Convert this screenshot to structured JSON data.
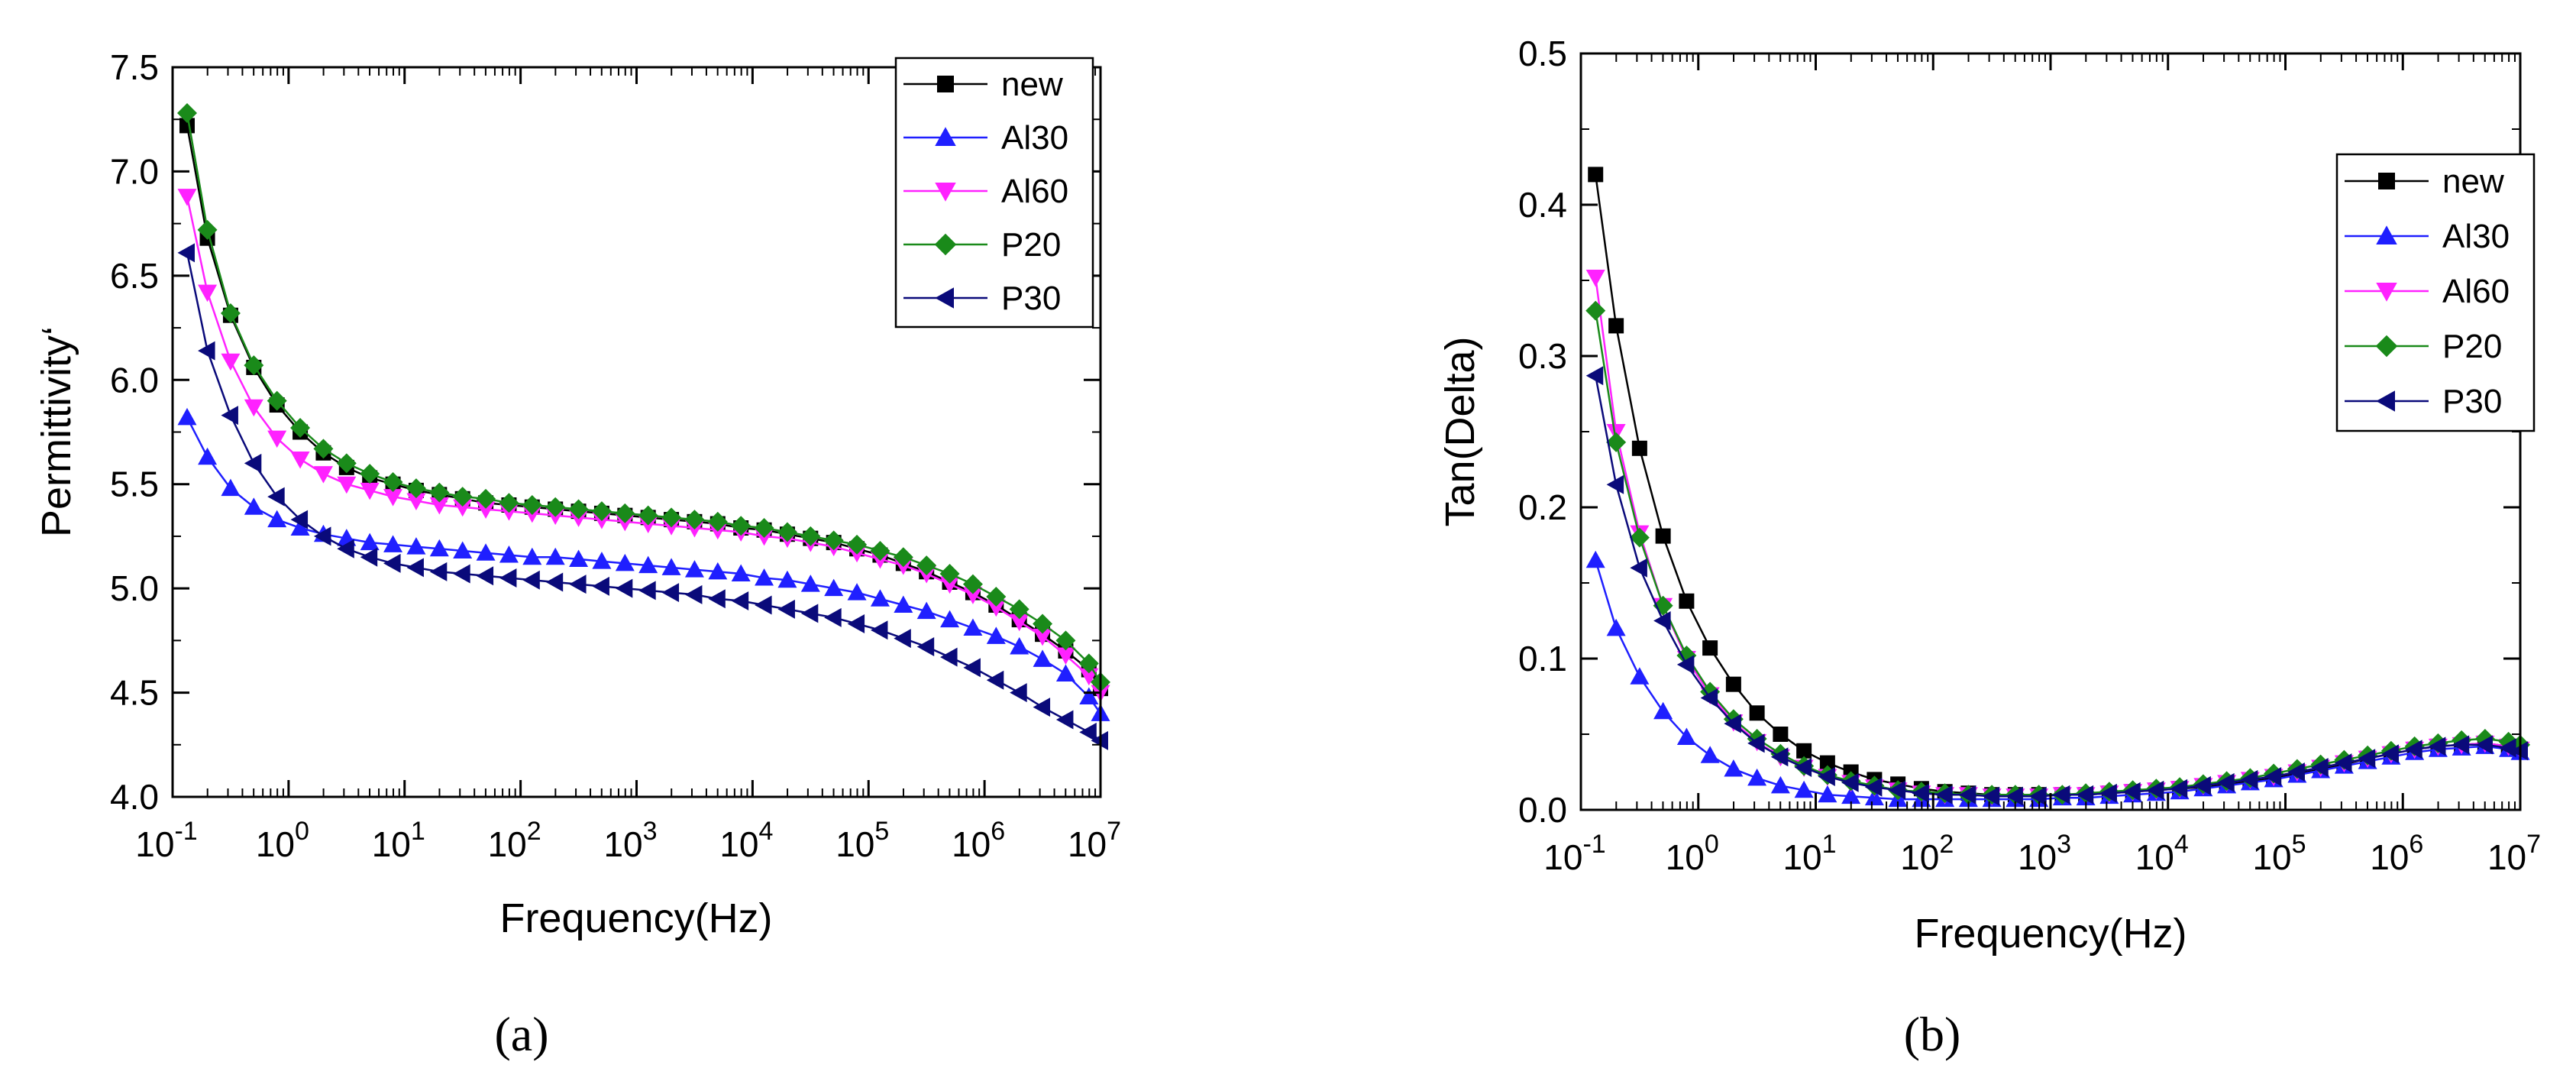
{
  "chart_data": [
    {
      "type": "line",
      "panel_label": "(a)",
      "title": "",
      "xlabel": "Frequency(Hz)",
      "ylabel": "Permittivity‘",
      "xscale": "log",
      "xlim_exp": [
        -1,
        7
      ],
      "ylim": [
        4.0,
        7.5
      ],
      "x_ticks": [
        {
          "base": "10",
          "exp": "-1"
        },
        {
          "base": "10",
          "exp": "0"
        },
        {
          "base": "10",
          "exp": "1"
        },
        {
          "base": "10",
          "exp": "2"
        },
        {
          "base": "10",
          "exp": "3"
        },
        {
          "base": "10",
          "exp": "4"
        },
        {
          "base": "10",
          "exp": "5"
        },
        {
          "base": "10",
          "exp": "6"
        },
        {
          "base": "10",
          "exp": "7"
        }
      ],
      "y_ticks": [
        "4.0",
        "4.5",
        "5.0",
        "5.5",
        "6.0",
        "6.5",
        "7.0",
        "7.5"
      ],
      "legend_position": "top-right",
      "x_exp": [
        -0.875,
        -0.7,
        -0.5,
        -0.3,
        -0.1,
        0.1,
        0.3,
        0.5,
        0.7,
        0.9,
        1.1,
        1.3,
        1.5,
        1.7,
        1.9,
        2.1,
        2.3,
        2.5,
        2.7,
        2.9,
        3.1,
        3.3,
        3.5,
        3.7,
        3.9,
        4.1,
        4.3,
        4.5,
        4.7,
        4.9,
        5.1,
        5.3,
        5.5,
        5.7,
        5.9,
        6.1,
        6.3,
        6.5,
        6.7,
        6.9,
        7.0
      ],
      "series": [
        {
          "name": "new",
          "color": "#000000",
          "marker": "square",
          "values": [
            7.22,
            6.68,
            6.31,
            6.06,
            5.88,
            5.75,
            5.65,
            5.58,
            5.53,
            5.5,
            5.47,
            5.45,
            5.43,
            5.41,
            5.4,
            5.39,
            5.38,
            5.37,
            5.36,
            5.35,
            5.34,
            5.33,
            5.32,
            5.31,
            5.29,
            5.28,
            5.26,
            5.24,
            5.22,
            5.19,
            5.16,
            5.12,
            5.08,
            5.03,
            4.98,
            4.92,
            4.85,
            4.78,
            4.7,
            4.61,
            4.52
          ]
        },
        {
          "name": "Al30",
          "color": "#1f1fff",
          "marker": "triangle-up",
          "values": [
            5.82,
            5.63,
            5.48,
            5.39,
            5.33,
            5.29,
            5.26,
            5.24,
            5.22,
            5.21,
            5.2,
            5.19,
            5.18,
            5.17,
            5.16,
            5.15,
            5.15,
            5.14,
            5.13,
            5.12,
            5.11,
            5.1,
            5.09,
            5.08,
            5.07,
            5.05,
            5.04,
            5.02,
            5.0,
            4.98,
            4.95,
            4.92,
            4.89,
            4.85,
            4.81,
            4.77,
            4.72,
            4.66,
            4.59,
            4.48,
            4.4
          ]
        },
        {
          "name": "Al60",
          "color": "#ff22ff",
          "marker": "triangle-down",
          "values": [
            6.88,
            6.42,
            6.09,
            5.87,
            5.72,
            5.62,
            5.55,
            5.5,
            5.47,
            5.44,
            5.42,
            5.4,
            5.39,
            5.38,
            5.37,
            5.36,
            5.35,
            5.34,
            5.33,
            5.32,
            5.31,
            5.3,
            5.29,
            5.28,
            5.27,
            5.25,
            5.24,
            5.22,
            5.2,
            5.17,
            5.14,
            5.11,
            5.07,
            5.02,
            4.97,
            4.91,
            4.84,
            4.77,
            4.68,
            4.58,
            4.5
          ]
        },
        {
          "name": "P20",
          "color": "#1a8a1a",
          "marker": "diamond",
          "values": [
            7.28,
            6.72,
            6.32,
            6.07,
            5.9,
            5.77,
            5.67,
            5.6,
            5.55,
            5.51,
            5.48,
            5.46,
            5.44,
            5.43,
            5.41,
            5.4,
            5.39,
            5.38,
            5.37,
            5.36,
            5.35,
            5.34,
            5.33,
            5.32,
            5.3,
            5.29,
            5.27,
            5.25,
            5.23,
            5.21,
            5.18,
            5.15,
            5.11,
            5.07,
            5.02,
            4.96,
            4.9,
            4.83,
            4.75,
            4.64,
            4.55
          ]
        },
        {
          "name": "P30",
          "color": "#0a0a7a",
          "marker": "triangle-left",
          "values": [
            6.61,
            6.14,
            5.83,
            5.6,
            5.44,
            5.33,
            5.25,
            5.19,
            5.15,
            5.12,
            5.1,
            5.08,
            5.07,
            5.06,
            5.05,
            5.04,
            5.03,
            5.02,
            5.01,
            5.0,
            4.99,
            4.98,
            4.97,
            4.95,
            4.94,
            4.92,
            4.9,
            4.88,
            4.86,
            4.83,
            4.8,
            4.76,
            4.72,
            4.67,
            4.62,
            4.56,
            4.5,
            4.43,
            4.37,
            4.31,
            4.27
          ]
        }
      ]
    },
    {
      "type": "line",
      "panel_label": "(b)",
      "title": "",
      "xlabel": "Frequency(Hz)",
      "ylabel": "Tan(Delta)",
      "xscale": "log",
      "xlim_exp": [
        -1,
        7
      ],
      "ylim": [
        0.0,
        0.5
      ],
      "x_ticks": [
        {
          "base": "10",
          "exp": "-1"
        },
        {
          "base": "10",
          "exp": "0"
        },
        {
          "base": "10",
          "exp": "1"
        },
        {
          "base": "10",
          "exp": "2"
        },
        {
          "base": "10",
          "exp": "3"
        },
        {
          "base": "10",
          "exp": "4"
        },
        {
          "base": "10",
          "exp": "5"
        },
        {
          "base": "10",
          "exp": "6"
        },
        {
          "base": "10",
          "exp": "7"
        }
      ],
      "y_ticks": [
        "0.0",
        "0.1",
        "0.2",
        "0.3",
        "0.4",
        "0.5"
      ],
      "legend_position": "upper-right",
      "x_exp": [
        -0.875,
        -0.7,
        -0.5,
        -0.3,
        -0.1,
        0.1,
        0.3,
        0.5,
        0.7,
        0.9,
        1.1,
        1.3,
        1.5,
        1.7,
        1.9,
        2.1,
        2.3,
        2.5,
        2.7,
        2.9,
        3.1,
        3.3,
        3.5,
        3.7,
        3.9,
        4.1,
        4.3,
        4.5,
        4.7,
        4.9,
        5.1,
        5.3,
        5.5,
        5.7,
        5.9,
        6.1,
        6.3,
        6.5,
        6.7,
        6.9,
        7.0
      ],
      "series": [
        {
          "name": "new",
          "color": "#000000",
          "marker": "square",
          "values": [
            0.42,
            0.32,
            0.239,
            0.181,
            0.138,
            0.107,
            0.083,
            0.064,
            0.05,
            0.039,
            0.031,
            0.025,
            0.02,
            0.017,
            0.014,
            0.012,
            0.011,
            0.01,
            0.01,
            0.01,
            0.01,
            0.01,
            0.011,
            0.012,
            0.013,
            0.014,
            0.015,
            0.017,
            0.019,
            0.021,
            0.024,
            0.027,
            0.03,
            0.034,
            0.037,
            0.04,
            0.042,
            0.043,
            0.044,
            0.042,
            0.04
          ]
        },
        {
          "name": "Al30",
          "color": "#1f1fff",
          "marker": "triangle-up",
          "values": [
            0.165,
            0.12,
            0.088,
            0.065,
            0.048,
            0.036,
            0.027,
            0.021,
            0.016,
            0.013,
            0.01,
            0.009,
            0.008,
            0.007,
            0.007,
            0.007,
            0.007,
            0.007,
            0.007,
            0.007,
            0.008,
            0.008,
            0.009,
            0.01,
            0.011,
            0.012,
            0.014,
            0.016,
            0.018,
            0.02,
            0.023,
            0.026,
            0.029,
            0.032,
            0.035,
            0.038,
            0.04,
            0.041,
            0.042,
            0.04,
            0.038
          ]
        },
        {
          "name": "Al60",
          "color": "#ff22ff",
          "marker": "triangle-down",
          "values": [
            0.352,
            0.25,
            0.183,
            0.135,
            0.1,
            0.076,
            0.058,
            0.045,
            0.035,
            0.028,
            0.022,
            0.018,
            0.015,
            0.013,
            0.011,
            0.01,
            0.01,
            0.009,
            0.009,
            0.009,
            0.01,
            0.01,
            0.011,
            0.012,
            0.013,
            0.014,
            0.016,
            0.018,
            0.02,
            0.022,
            0.025,
            0.028,
            0.031,
            0.034,
            0.037,
            0.04,
            0.042,
            0.043,
            0.044,
            0.042,
            0.04
          ]
        },
        {
          "name": "P20",
          "color": "#1a8a1a",
          "marker": "diamond",
          "values": [
            0.33,
            0.243,
            0.18,
            0.135,
            0.102,
            0.078,
            0.06,
            0.047,
            0.037,
            0.029,
            0.023,
            0.019,
            0.016,
            0.013,
            0.012,
            0.011,
            0.01,
            0.01,
            0.01,
            0.01,
            0.01,
            0.011,
            0.012,
            0.013,
            0.014,
            0.015,
            0.017,
            0.019,
            0.021,
            0.024,
            0.027,
            0.03,
            0.033,
            0.036,
            0.039,
            0.042,
            0.044,
            0.046,
            0.047,
            0.045,
            0.043
          ]
        },
        {
          "name": "P30",
          "color": "#0a0a7a",
          "marker": "triangle-left",
          "values": [
            0.287,
            0.215,
            0.16,
            0.125,
            0.096,
            0.074,
            0.057,
            0.044,
            0.035,
            0.028,
            0.022,
            0.018,
            0.015,
            0.013,
            0.011,
            0.01,
            0.01,
            0.009,
            0.009,
            0.009,
            0.01,
            0.01,
            0.011,
            0.012,
            0.013,
            0.014,
            0.016,
            0.018,
            0.02,
            0.022,
            0.025,
            0.028,
            0.031,
            0.034,
            0.037,
            0.04,
            0.042,
            0.043,
            0.043,
            0.041,
            0.039
          ]
        }
      ]
    }
  ]
}
